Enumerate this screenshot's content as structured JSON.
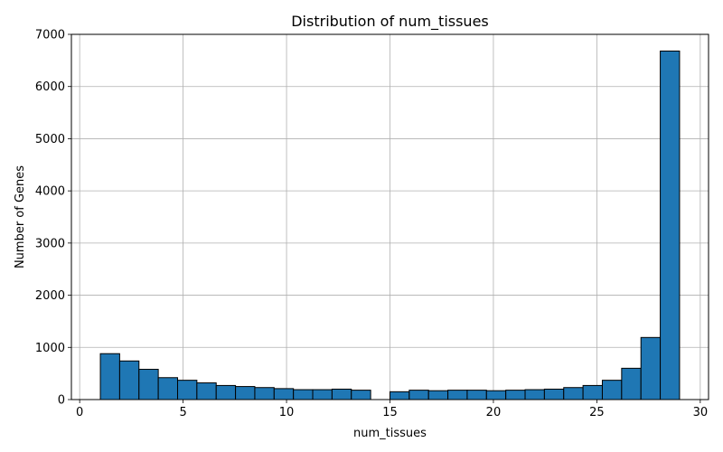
{
  "chart_data": {
    "type": "bar",
    "title": "Distribution of num_tissues",
    "xlabel": "num_tissues",
    "ylabel": "Number of Genes",
    "xlim": [
      -0.4,
      30.4
    ],
    "ylim": [
      0,
      7000
    ],
    "xticks": [
      0,
      5,
      10,
      15,
      20,
      25,
      30
    ],
    "yticks": [
      0,
      1000,
      2000,
      3000,
      4000,
      5000,
      6000,
      7000
    ],
    "grid": true,
    "bar_color": "#1f77b4",
    "edge_color": "#000000",
    "bin_start": 1,
    "bin_width": 0.9333,
    "values": [
      880,
      740,
      580,
      420,
      370,
      320,
      270,
      250,
      230,
      210,
      190,
      190,
      200,
      180,
      0,
      150,
      180,
      170,
      180,
      180,
      170,
      180,
      190,
      200,
      230,
      270,
      370,
      600,
      1190,
      6680
    ]
  }
}
